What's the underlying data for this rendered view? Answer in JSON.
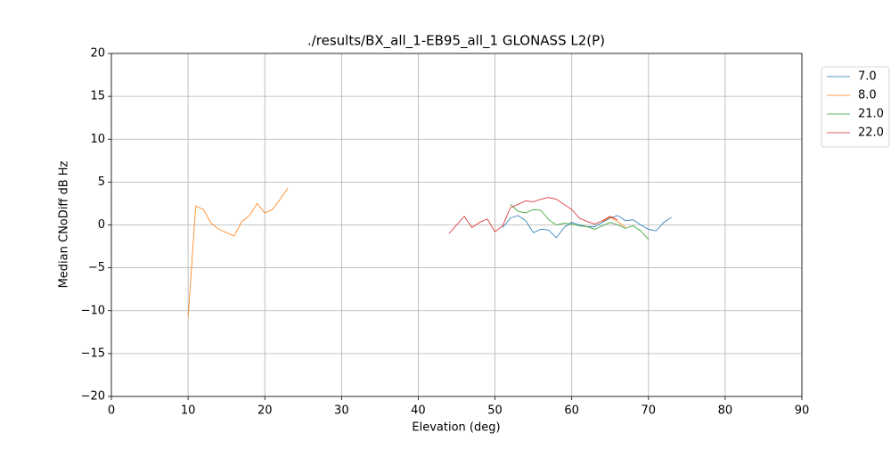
{
  "chart_data": {
    "type": "line",
    "title": "./results/BX_all_1-EB95_all_1 GLONASS L2(P)",
    "x_label": "Elevation (deg)",
    "y_label": "Median CNoDiff dB Hz",
    "xlim": [
      0,
      90
    ],
    "ylim": [
      -20,
      20
    ],
    "xticks": [
      0,
      10,
      20,
      30,
      40,
      50,
      60,
      70,
      80,
      90
    ],
    "yticks": [
      {
        "value": -20,
        "label": "−20"
      },
      {
        "value": -15,
        "label": "−15"
      },
      {
        "value": -10,
        "label": "−10"
      },
      {
        "value": -5,
        "label": "−5"
      },
      0,
      5,
      10,
      15,
      20
    ],
    "grid": true,
    "legend": "outside-upper-right",
    "series": [
      {
        "name": "7.0",
        "color": "#1f77b4",
        "x": [
          51,
          52,
          53,
          54,
          55,
          56,
          57,
          58,
          59,
          60,
          61,
          62,
          63,
          64,
          65,
          66,
          67,
          68,
          69,
          70,
          71,
          72,
          73
        ],
        "values": [
          -0.3,
          0.8,
          1.1,
          0.5,
          -0.9,
          -0.5,
          -0.6,
          -1.5,
          -0.3,
          0.3,
          0.0,
          -0.2,
          -0.2,
          0.3,
          0.8,
          1.1,
          0.5,
          0.6,
          0.0,
          -0.5,
          -0.7,
          0.3,
          0.9
        ]
      },
      {
        "name": "8.0",
        "color": "#ff7f0e",
        "x": [
          10,
          11,
          12,
          13,
          14,
          15,
          16,
          17,
          18,
          19,
          20,
          21,
          22,
          23,
          40,
          64,
          65,
          66,
          67
        ],
        "values": [
          -10.8,
          2.2,
          1.8,
          0.2,
          -0.5,
          -0.9,
          -1.3,
          0.4,
          1.1,
          2.5,
          1.4,
          1.8,
          3.0,
          4.3,
          null,
          0.4,
          0.9,
          0.4,
          -0.3
        ]
      },
      {
        "name": "21.0",
        "color": "#2ca02c",
        "x": [
          52,
          53,
          54,
          55,
          56,
          57,
          58,
          59,
          60,
          61,
          62,
          63,
          64,
          65,
          66,
          67,
          68,
          69,
          70
        ],
        "values": [
          2.4,
          1.6,
          1.4,
          1.8,
          1.7,
          0.6,
          0.0,
          0.2,
          0.1,
          -0.1,
          -0.2,
          -0.5,
          -0.1,
          0.3,
          0.0,
          -0.4,
          -0.1,
          -0.7,
          -1.7
        ]
      },
      {
        "name": "22.0",
        "color": "#d62728",
        "x": [
          44,
          45,
          46,
          47,
          48,
          49,
          50,
          51,
          52,
          53,
          54,
          55,
          56,
          57,
          58,
          59,
          60,
          61,
          62,
          63,
          64,
          65,
          66
        ],
        "values": [
          -1.0,
          0.0,
          1.0,
          -0.3,
          0.3,
          0.7,
          -0.8,
          -0.1,
          2.0,
          2.4,
          2.8,
          2.7,
          3.0,
          3.2,
          3.0,
          2.4,
          1.8,
          0.8,
          0.4,
          0.1,
          0.5,
          1.0,
          0.6
        ]
      }
    ]
  }
}
